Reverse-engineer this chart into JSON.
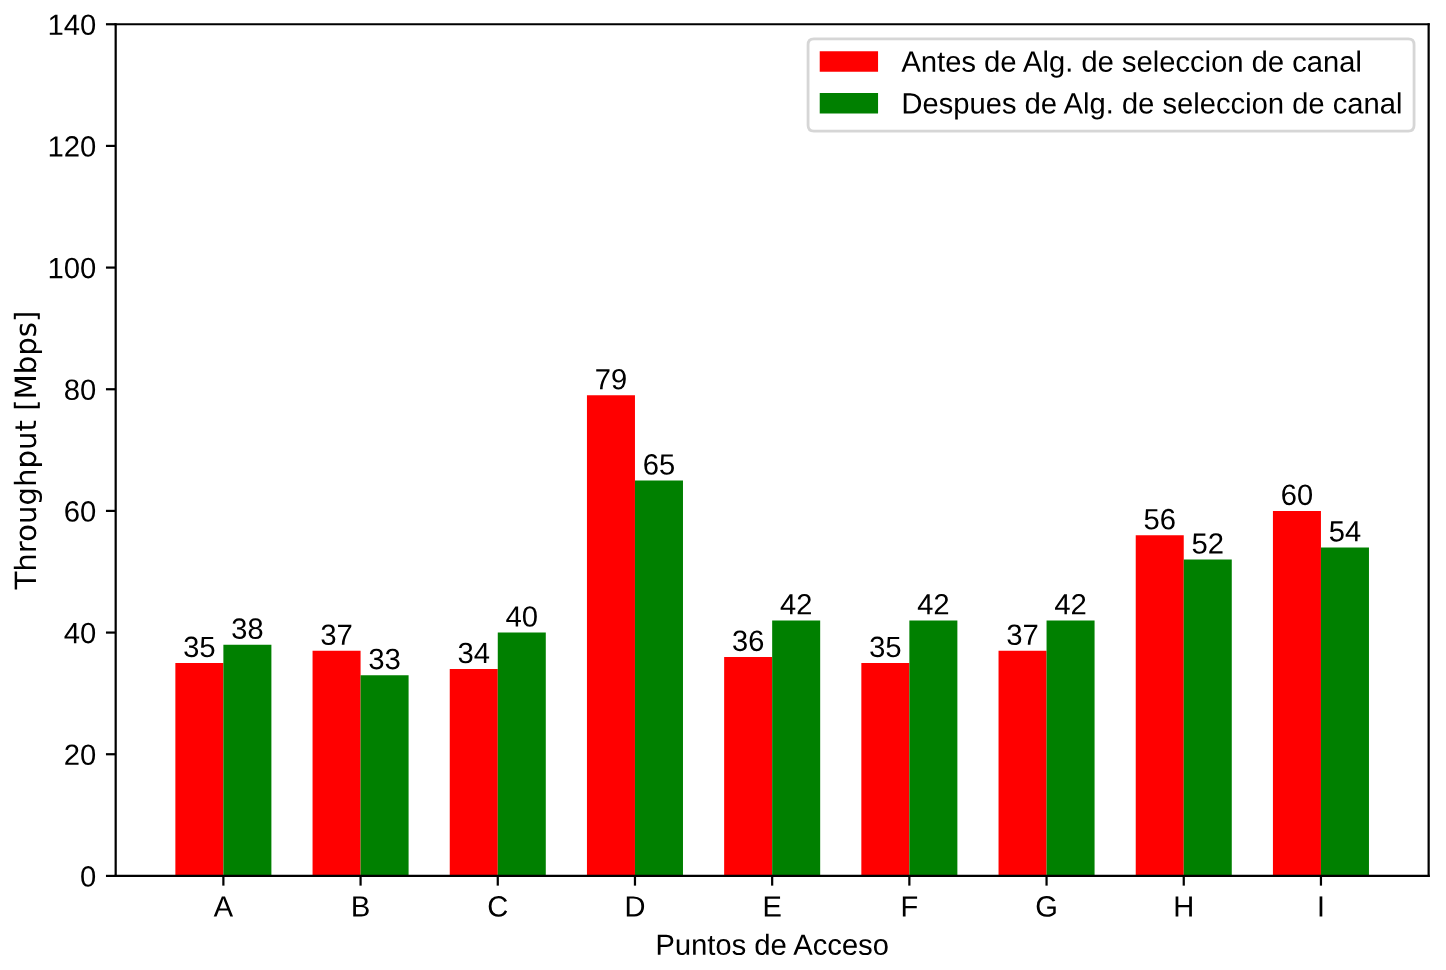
{
  "chart_data": {
    "type": "bar",
    "xlabel": "Puntos de Acceso",
    "ylabel": "Throughput [Mbps]",
    "categories": [
      "A",
      "B",
      "C",
      "D",
      "E",
      "F",
      "G",
      "H",
      "I"
    ],
    "series": [
      {
        "name": "Antes de Alg. de seleccion de canal",
        "color": "#ff0000",
        "values": [
          35,
          37,
          34,
          79,
          36,
          35,
          37,
          56,
          60
        ]
      },
      {
        "name": "Despues de Alg. de seleccion de canal",
        "color": "#008000",
        "values": [
          38,
          33,
          40,
          65,
          42,
          42,
          42,
          52,
          54
        ]
      }
    ],
    "ylim": [
      0,
      140
    ],
    "yticks": [
      0,
      20,
      40,
      60,
      80,
      100,
      120,
      140
    ],
    "data_labels": true,
    "legend": "top right",
    "grid": false
  }
}
